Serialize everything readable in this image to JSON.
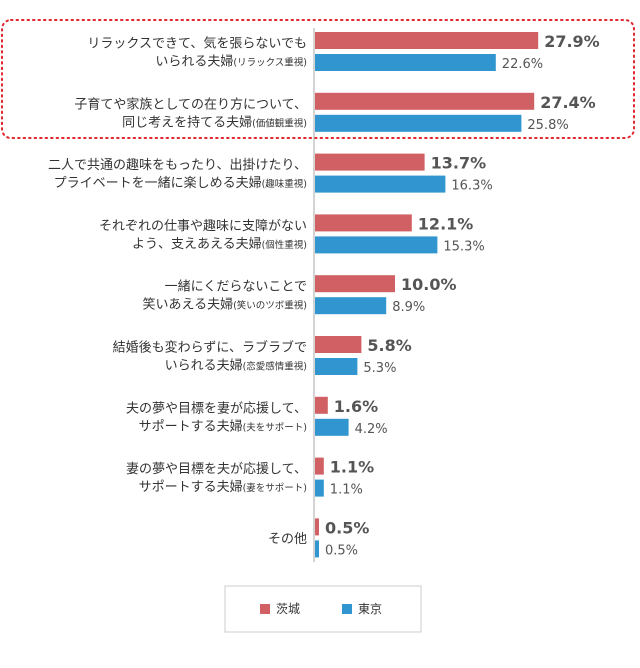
{
  "chart_data": {
    "type": "bar",
    "orientation": "horizontal",
    "categories": [
      {
        "lines": [
          {
            "main": "リラックスできて、気を張らないでも"
          },
          {
            "main": "いられる夫婦",
            "note": "(リラックス重視)"
          }
        ]
      },
      {
        "lines": [
          {
            "main": "子育てや家族としての在り方について、"
          },
          {
            "main": "同じ考えを持てる夫婦",
            "note": "(価値観重視)"
          }
        ]
      },
      {
        "lines": [
          {
            "main": "二人で共通の趣味をもったり、出掛けたり、"
          },
          {
            "main": "プライベートを一緒に楽しめる夫婦",
            "note": "(趣味重視)"
          }
        ]
      },
      {
        "lines": [
          {
            "main": "それぞれの仕事や趣味に支障がない"
          },
          {
            "main": "よう、支えあえる夫婦",
            "note": "(個性重視)"
          }
        ]
      },
      {
        "lines": [
          {
            "main": "一緒にくだらないことで"
          },
          {
            "main": "笑いあえる夫婦",
            "note": "(笑いのツボ重視)"
          }
        ]
      },
      {
        "lines": [
          {
            "main": "結婚後も変わらずに、ラブラブで"
          },
          {
            "main": "いられる夫婦",
            "note": "(恋愛感情重視)"
          }
        ]
      },
      {
        "lines": [
          {
            "main": "夫の夢や目標を妻が応援して、"
          },
          {
            "main": "サポートする夫婦",
            "note": "(夫をサポート)"
          }
        ]
      },
      {
        "lines": [
          {
            "main": "妻の夢や目標を夫が応援して、"
          },
          {
            "main": "サポートする夫婦",
            "note": "(妻をサポート)"
          }
        ]
      },
      {
        "lines": [
          {
            "main": "その他"
          }
        ]
      }
    ],
    "series": [
      {
        "name": "茨城",
        "color": "#d06064",
        "values": [
          27.9,
          27.4,
          13.7,
          12.1,
          10.0,
          5.8,
          1.6,
          1.1,
          0.5
        ],
        "labels": [
          "27.9%",
          "27.4%",
          "13.7%",
          "12.1%",
          "10.0%",
          "5.8%",
          "1.6%",
          "1.1%",
          "0.5%"
        ]
      },
      {
        "name": "東京",
        "color": "#3196cf",
        "values": [
          22.6,
          25.8,
          16.3,
          15.3,
          8.9,
          5.3,
          4.2,
          1.1,
          0.5
        ],
        "labels": [
          "22.6%",
          "25.8%",
          "16.3%",
          "15.3%",
          "8.9%",
          "5.3%",
          "4.2%",
          "1.1%",
          "0.5%"
        ]
      }
    ],
    "xlim": [
      0,
      30
    ],
    "grid": false,
    "legend": "bottom",
    "highlight": {
      "categories": [
        0,
        1
      ],
      "style": "dotted-red-border"
    }
  }
}
